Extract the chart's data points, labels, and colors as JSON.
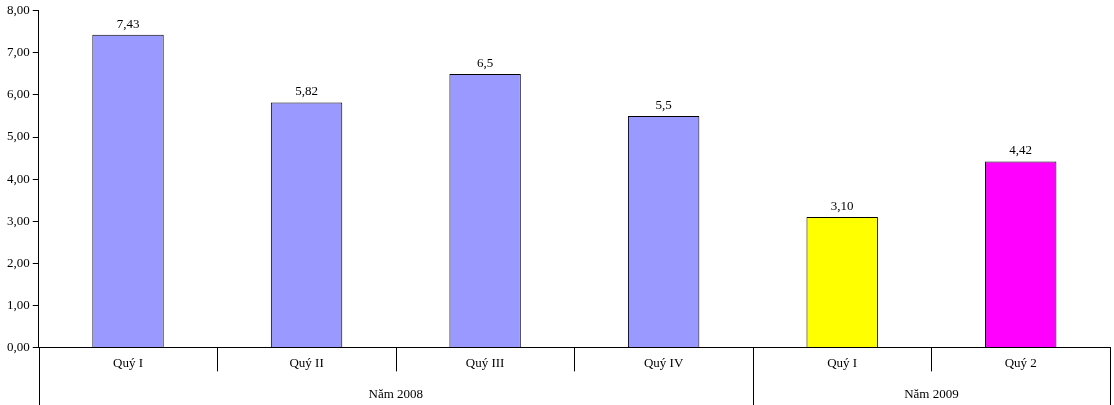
{
  "chart_data": {
    "type": "bar",
    "categories": [
      "Quý I",
      "Quý II",
      "Quý III",
      "Quý IV",
      "Quý I",
      "Quý 2"
    ],
    "values": [
      7.43,
      5.82,
      6.5,
      5.5,
      3.1,
      4.42
    ],
    "colors": [
      "#9999ff",
      "#9999ff",
      "#9999ff",
      "#9999ff",
      "#ffff00",
      "#ff00ff"
    ],
    "value_labels": [
      "7,43",
      "5,82",
      "6,5",
      "5,5",
      "3,10",
      "4,42"
    ],
    "ylim": [
      0,
      8
    ],
    "yticks": [
      {
        "value": 0,
        "label": "0,00"
      },
      {
        "value": 1,
        "label": "1,00"
      },
      {
        "value": 2,
        "label": "2,00"
      },
      {
        "value": 3,
        "label": "3,00"
      },
      {
        "value": 4,
        "label": "4,00"
      },
      {
        "value": 5,
        "label": "5,00"
      },
      {
        "value": 6,
        "label": "6,00"
      },
      {
        "value": 7,
        "label": "7,00"
      },
      {
        "value": 8,
        "label": "8,00"
      }
    ],
    "annotations": [
      "Năm 2008",
      "Năm 2009"
    ],
    "grid": false,
    "legend": false
  }
}
